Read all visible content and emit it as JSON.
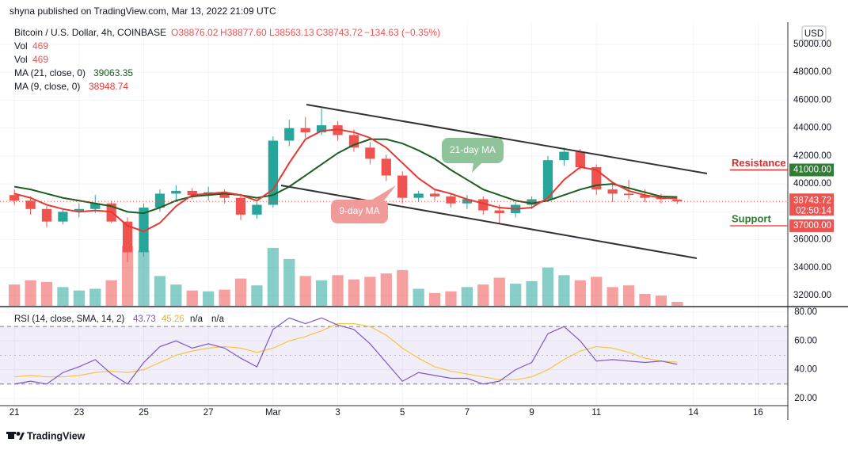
{
  "header": {
    "published": "shyna published on TradingView.com, Mar 13, 2022 21:09 UTC",
    "brand": "TradingView"
  },
  "chart_data": {
    "type": "candlestick",
    "title": "Bitcoin / U.S. Dollar, 4h, COINBASE",
    "ohlc_legend": [
      "O38876.02",
      "H38877.60",
      "L38563.13",
      "C38743.72",
      "−134.63 (−0.35%)"
    ],
    "currency": "USD",
    "up_color": "#26a69a",
    "down_color": "#ef5350",
    "x": [
      0,
      0.5,
      1,
      1.5,
      2,
      2.5,
      3,
      3.5,
      4,
      4.5,
      5,
      5.5,
      6,
      6.5,
      7,
      7.5,
      8,
      8.5,
      9,
      9.5,
      10,
      10.5,
      11,
      11.5,
      12,
      12.5,
      13,
      13.5,
      14,
      14.5,
      15,
      15.5,
      16,
      16.5,
      17,
      17.5,
      18,
      18.5,
      19,
      19.5,
      20,
      20.5
    ],
    "open": [
      39200,
      38800,
      38200,
      37300,
      38000,
      38200,
      38600,
      37300,
      35100,
      38300,
      39300,
      39500,
      39200,
      39400,
      39000,
      37800,
      38500,
      43100,
      44000,
      43700,
      44200,
      43500,
      42600,
      41800,
      40600,
      39000,
      39300,
      39100,
      38600,
      38900,
      38100,
      37900,
      38500,
      38900,
      41700,
      42300,
      41200,
      39600,
      39300,
      39200,
      39000,
      38876.02
    ],
    "high": [
      39600,
      39100,
      38400,
      38200,
      38600,
      39200,
      38800,
      37600,
      38600,
      39600,
      39900,
      39700,
      39800,
      39600,
      39300,
      38700,
      43400,
      44600,
      44800,
      45400,
      44500,
      43900,
      43000,
      42100,
      40900,
      39500,
      39600,
      39300,
      39200,
      39100,
      38500,
      38700,
      39100,
      42000,
      42600,
      42500,
      41400,
      40100,
      40300,
      39600,
      39300,
      38877.6
    ],
    "low": [
      38500,
      37800,
      36900,
      37100,
      37600,
      37900,
      37200,
      34400,
      34800,
      38000,
      38700,
      38900,
      38800,
      38600,
      37400,
      37500,
      38300,
      42700,
      43300,
      43500,
      43100,
      42300,
      41400,
      40200,
      38600,
      38700,
      38800,
      38300,
      38200,
      37800,
      37100,
      37600,
      38200,
      38700,
      41300,
      41000,
      39200,
      38700,
      38900,
      38700,
      38600,
      38563.13
    ],
    "close": [
      38800,
      38200,
      37300,
      38000,
      38200,
      38600,
      37300,
      35100,
      38300,
      39300,
      39500,
      39200,
      39400,
      39000,
      37800,
      38500,
      43100,
      44000,
      43700,
      44200,
      43500,
      42600,
      41800,
      40600,
      39000,
      39300,
      39100,
      38600,
      38900,
      38100,
      37900,
      38500,
      38900,
      41700,
      42300,
      41200,
      39600,
      39300,
      39200,
      39000,
      38900,
      38743.72
    ],
    "volume": [
      2500,
      3000,
      2800,
      2200,
      1800,
      2000,
      3000,
      7000,
      6500,
      3500,
      2500,
      1800,
      1700,
      1900,
      3200,
      2400,
      6800,
      5500,
      3500,
      3000,
      3600,
      3100,
      3400,
      3800,
      4200,
      2000,
      1500,
      1700,
      2200,
      2500,
      3300,
      2600,
      2900,
      4500,
      3600,
      3000,
      3400,
      2200,
      2400,
      1400,
      1200,
      469
    ],
    "volume_ylim": [
      0,
      8000
    ],
    "volume_legend": [
      {
        "name": "Vol",
        "label": "469"
      },
      {
        "name": "Vol",
        "label": "469"
      }
    ],
    "series": [
      {
        "name": "MA (21, close, 0)",
        "color": "#1b5e20",
        "value_label": "39063.35",
        "values": [
          39800,
          39600,
          39300,
          39000,
          38800,
          38600,
          38400,
          38000,
          37900,
          38300,
          38800,
          39100,
          39200,
          39300,
          39200,
          39000,
          39200,
          39800,
          40600,
          41400,
          42200,
          42800,
          43200,
          43200,
          42900,
          42400,
          41800,
          41000,
          40300,
          39600,
          39200,
          38800,
          38600,
          38800,
          39200,
          39600,
          39900,
          40000,
          39700,
          39400,
          39100,
          39063.35
        ]
      },
      {
        "name": "MA (9, close, 0)",
        "color": "#e53935",
        "value_label": "38948.74",
        "values": [
          39300,
          39000,
          38500,
          38200,
          38000,
          38100,
          38000,
          37000,
          36600,
          37200,
          38400,
          39200,
          39300,
          39400,
          39200,
          38800,
          39600,
          41500,
          43200,
          43800,
          43900,
          43700,
          43300,
          42600,
          41500,
          40400,
          39600,
          39300,
          38900,
          38600,
          38300,
          38200,
          38300,
          39000,
          40300,
          41200,
          41000,
          40100,
          39500,
          39200,
          39000,
          38948.74
        ]
      }
    ],
    "ylim": [
      31205,
      51476
    ],
    "yticks": [
      {
        "value": 32000,
        "label": "32000.00"
      },
      {
        "value": 34000,
        "label": "34000.00"
      },
      {
        "value": 36000,
        "label": "36000.00"
      },
      {
        "value": 38000,
        "label": "38000.00"
      },
      {
        "value": 40000,
        "label": "40000.00"
      },
      {
        "value": 42000,
        "label": "42000.00"
      },
      {
        "value": 44000,
        "label": "44000.00"
      },
      {
        "value": 46000,
        "label": "46000.00"
      },
      {
        "value": 48000,
        "label": "48000.00"
      },
      {
        "value": 50000,
        "label": "50000.00"
      }
    ],
    "xlim": [
      -0.2,
      23.92
    ],
    "xticks": [
      {
        "value": 0,
        "label": "21"
      },
      {
        "value": 2,
        "label": "23"
      },
      {
        "value": 4,
        "label": "25"
      },
      {
        "value": 6,
        "label": "27"
      },
      {
        "value": 8,
        "label": "Mar"
      },
      {
        "value": 10,
        "label": "3"
      },
      {
        "value": 12,
        "label": "5"
      },
      {
        "value": 14,
        "label": "7"
      },
      {
        "value": 16,
        "label": "9"
      },
      {
        "value": 18,
        "label": "11"
      },
      {
        "value": 21,
        "label": "14"
      },
      {
        "value": 23,
        "label": "16"
      }
    ],
    "grid": true,
    "last_price": {
      "value": 38743.72,
      "label": "38743.72",
      "countdown": "02:50:14"
    },
    "levels": [
      {
        "name": "Resistance",
        "value": 41000,
        "label": "41000.00",
        "color": "#d32f2f",
        "box_color": "#2e7d32"
      },
      {
        "name": "Support",
        "value": 37000,
        "label": "37000.00",
        "color": "#2e7d32",
        "box_color": "#ef5350"
      }
    ],
    "annotations": [
      "21-day MA",
      "9-day MA"
    ],
    "rsi": {
      "name": "RSI (14, close, SMA, 14, 2)",
      "color": "#7e57c2",
      "value_label": "43.73",
      "values": [
        30,
        32,
        30,
        38,
        42,
        47,
        37,
        30,
        45,
        56,
        60,
        55,
        58,
        55,
        48,
        42,
        68,
        76,
        72,
        76,
        71,
        68,
        58,
        45,
        32,
        38,
        36,
        34,
        34,
        30,
        32,
        40,
        45,
        65,
        70,
        60,
        46,
        47,
        46,
        45,
        46,
        43.73
      ],
      "sma": {
        "color": "#f4c542",
        "value_label": "45.26",
        "values": [
          35,
          36,
          35,
          35,
          36,
          38,
          39,
          38,
          40,
          45,
          50,
          53,
          55,
          56,
          55,
          52,
          55,
          60,
          63,
          67,
          72,
          72,
          70,
          64,
          55,
          48,
          42,
          39,
          37,
          35,
          33,
          33,
          35,
          40,
          47,
          53,
          56,
          55,
          52,
          48,
          46,
          45.26
        ]
      },
      "extra_labels": [
        "n/a",
        "n/a"
      ],
      "band": [
        30,
        70
      ],
      "ylim": [
        15,
        83.3
      ],
      "yticks": [
        {
          "value": 20,
          "label": "20.00"
        },
        {
          "value": 40,
          "label": "40.00"
        },
        {
          "value": 60,
          "label": "60.00"
        },
        {
          "value": 80,
          "label": "80.00"
        }
      ]
    }
  }
}
